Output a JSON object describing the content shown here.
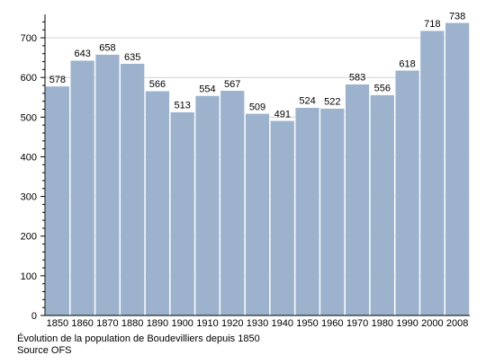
{
  "chart_data": {
    "type": "bar",
    "categories": [
      "1850",
      "1860",
      "1870",
      "1880",
      "1890",
      "1900",
      "1910",
      "1920",
      "1930",
      "1940",
      "1950",
      "1960",
      "1970",
      "1980",
      "1990",
      "2000",
      "2008"
    ],
    "values": [
      578,
      643,
      658,
      635,
      566,
      513,
      554,
      567,
      509,
      491,
      524,
      522,
      583,
      556,
      618,
      718,
      738
    ],
    "title": "",
    "xlabel": "",
    "ylabel": "",
    "ylim": [
      0,
      750
    ],
    "yticks": [
      0,
      100,
      200,
      300,
      400,
      500,
      600,
      700
    ],
    "grid": true,
    "data_labels": true,
    "legend": "none"
  },
  "caption": {
    "line1": "Évolution de la population de Boudevilliers depuis 1850",
    "line2": "Source OFS"
  },
  "colors": {
    "bar": "#9db3cd",
    "bar_stroke": "#ffffff",
    "grid": "#d0d0d0",
    "axis": "#000000",
    "text": "#000000"
  }
}
